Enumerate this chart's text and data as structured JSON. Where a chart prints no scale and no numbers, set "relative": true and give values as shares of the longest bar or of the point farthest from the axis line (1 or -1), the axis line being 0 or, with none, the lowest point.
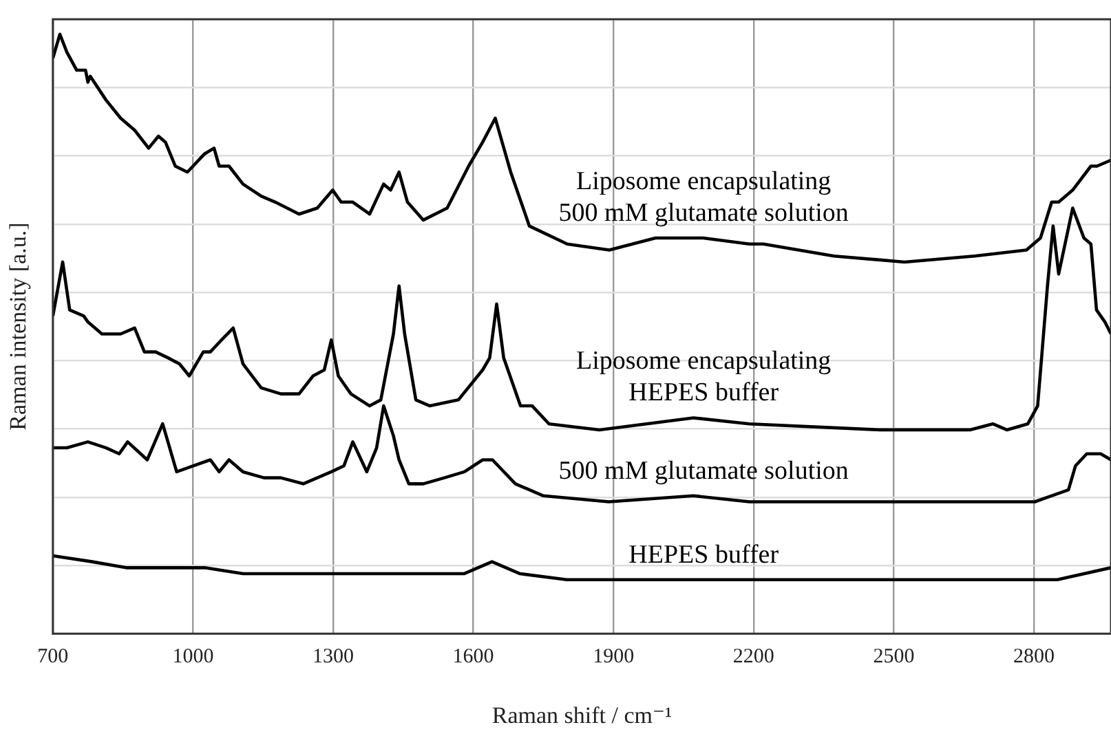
{
  "chart_data": {
    "type": "line",
    "xlabel": "Raman shift / cm⁻¹",
    "ylabel": "Raman intensity [a.u.]",
    "relative": true,
    "xlim": [
      700,
      2965
    ],
    "xticks": [
      700,
      1000,
      1300,
      1600,
      1900,
      2200,
      2500,
      2800
    ],
    "grid": true,
    "legend": false,
    "marker": "none",
    "line_style": "solid",
    "series": [
      {
        "name": "Liposome encapsulating\n500 mM glutamate solution",
        "color": "#000000",
        "x": [
          700,
          715,
          730,
          751,
          770,
          775,
          780,
          814,
          845,
          875,
          905,
          926,
          941,
          962,
          988,
          1024,
          1045,
          1056,
          1077,
          1107,
          1146,
          1176,
          1227,
          1266,
          1299,
          1317,
          1342,
          1378,
          1408,
          1423,
          1441,
          1459,
          1493,
          1544,
          1590,
          1620,
          1647,
          1680,
          1720,
          1801,
          1891,
          1990,
          2092,
          2191,
          2221,
          2372,
          2523,
          2673,
          2784,
          2814,
          2838,
          2853,
          2883,
          2922,
          2935,
          2965
        ],
        "values": [
          0.96,
          1.0,
          0.97,
          0.94,
          0.94,
          0.92,
          0.93,
          0.89,
          0.86,
          0.84,
          0.81,
          0.83,
          0.82,
          0.78,
          0.77,
          0.8,
          0.81,
          0.78,
          0.78,
          0.75,
          0.73,
          0.72,
          0.7,
          0.71,
          0.74,
          0.72,
          0.72,
          0.7,
          0.75,
          0.74,
          0.77,
          0.72,
          0.69,
          0.71,
          0.78,
          0.82,
          0.86,
          0.77,
          0.68,
          0.65,
          0.64,
          0.66,
          0.66,
          0.65,
          0.65,
          0.63,
          0.62,
          0.63,
          0.64,
          0.66,
          0.72,
          0.72,
          0.74,
          0.78,
          0.78,
          0.79
        ]
      },
      {
        "name": "Liposome encapsulating\nHEPES buffer",
        "color": "#000000",
        "x": [
          700,
          721,
          736,
          766,
          775,
          805,
          845,
          875,
          896,
          920,
          947,
          971,
          992,
          1022,
          1037,
          1061,
          1086,
          1107,
          1146,
          1188,
          1227,
          1257,
          1281,
          1296,
          1311,
          1338,
          1378,
          1402,
          1429,
          1441,
          1453,
          1477,
          1507,
          1568,
          1620,
          1635,
          1650,
          1665,
          1701,
          1726,
          1762,
          1870,
          2071,
          2191,
          2470,
          2663,
          2712,
          2742,
          2787,
          2808,
          2829,
          2841,
          2853,
          2883,
          2907,
          2922,
          2934,
          2952,
          2965
        ],
        "values": [
          0.53,
          0.62,
          0.54,
          0.53,
          0.52,
          0.5,
          0.5,
          0.51,
          0.47,
          0.47,
          0.46,
          0.45,
          0.43,
          0.47,
          0.47,
          0.49,
          0.51,
          0.45,
          0.41,
          0.4,
          0.4,
          0.43,
          0.44,
          0.49,
          0.43,
          0.4,
          0.38,
          0.39,
          0.5,
          0.58,
          0.5,
          0.39,
          0.38,
          0.39,
          0.44,
          0.46,
          0.55,
          0.46,
          0.38,
          0.38,
          0.35,
          0.34,
          0.36,
          0.35,
          0.34,
          0.34,
          0.35,
          0.34,
          0.35,
          0.38,
          0.58,
          0.68,
          0.6,
          0.71,
          0.66,
          0.65,
          0.54,
          0.52,
          0.5
        ]
      },
      {
        "name": "500 mM glutamate solution",
        "color": "#000000",
        "x": [
          700,
          730,
          775,
          814,
          842,
          860,
          902,
          935,
          965,
          1001,
          1037,
          1056,
          1077,
          1107,
          1152,
          1188,
          1236,
          1266,
          1296,
          1323,
          1342,
          1372,
          1393,
          1408,
          1429,
          1441,
          1462,
          1493,
          1538,
          1581,
          1620,
          1641,
          1690,
          1750,
          1890,
          2071,
          2191,
          2372,
          2622,
          2802,
          2874,
          2889,
          2913,
          2943,
          2965
        ],
        "values": [
          0.31,
          0.31,
          0.32,
          0.31,
          0.3,
          0.32,
          0.29,
          0.35,
          0.27,
          0.28,
          0.29,
          0.27,
          0.29,
          0.27,
          0.26,
          0.26,
          0.25,
          0.26,
          0.27,
          0.28,
          0.32,
          0.27,
          0.31,
          0.38,
          0.33,
          0.29,
          0.25,
          0.25,
          0.26,
          0.27,
          0.29,
          0.29,
          0.25,
          0.23,
          0.22,
          0.23,
          0.22,
          0.22,
          0.22,
          0.22,
          0.24,
          0.28,
          0.3,
          0.3,
          0.29
        ]
      },
      {
        "name": "HEPES buffer",
        "color": "#000000",
        "x": [
          700,
          784,
          857,
          926,
          995,
          1025,
          1107,
          1287,
          1489,
          1580,
          1640,
          1700,
          1800,
          2200,
          2600,
          2850,
          2965
        ],
        "values": [
          0.13,
          0.12,
          0.11,
          0.11,
          0.11,
          0.11,
          0.1,
          0.1,
          0.1,
          0.1,
          0.12,
          0.1,
          0.09,
          0.09,
          0.09,
          0.09,
          0.11
        ]
      }
    ]
  }
}
